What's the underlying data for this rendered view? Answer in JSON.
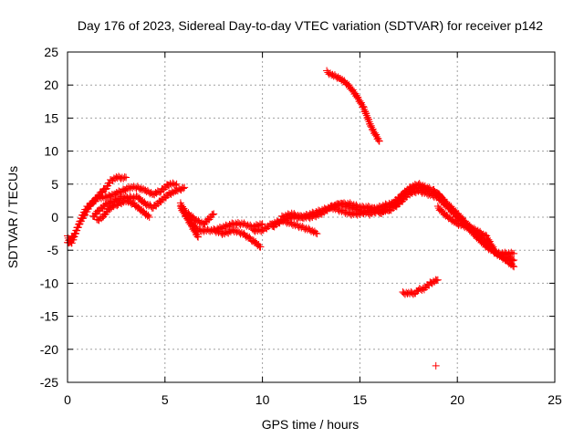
{
  "chart_data": {
    "type": "scatter",
    "title": "Day 176 of 2023, Sidereal Day-to-day VTEC variation (SDTVAR) for receiver p142",
    "xlabel": "GPS time / hours",
    "ylabel": "SDTVAR / TECUs",
    "xlim": [
      0,
      25
    ],
    "ylim": [
      -25,
      25
    ],
    "xticks": [
      0,
      5,
      10,
      15,
      20,
      25
    ],
    "yticks": [
      -25,
      -20,
      -15,
      -10,
      -5,
      0,
      5,
      10,
      15,
      20,
      25
    ],
    "grid": true,
    "marker": "+",
    "color": "#ff0000",
    "series": [
      {
        "name": "arc-early-rise",
        "points": [
          [
            0,
            -3
          ],
          [
            0.2,
            -4
          ],
          [
            0.4,
            -2.5
          ],
          [
            0.6,
            -1
          ],
          [
            0.8,
            0.5
          ],
          [
            1,
            1.5
          ],
          [
            1.2,
            2
          ],
          [
            1.5,
            3
          ],
          [
            1.8,
            4
          ],
          [
            2,
            4.5
          ],
          [
            2.2,
            5.5
          ],
          [
            2.5,
            6
          ],
          [
            2.8,
            6
          ],
          [
            3,
            6
          ]
        ]
      },
      {
        "name": "arc-early-upper",
        "points": [
          [
            0,
            -4
          ],
          [
            0.3,
            -3
          ],
          [
            0.6,
            -1
          ],
          [
            0.9,
            0.5
          ],
          [
            1.2,
            2
          ],
          [
            1.6,
            3
          ],
          [
            2,
            3
          ],
          [
            2.4,
            3.5
          ],
          [
            2.8,
            4
          ],
          [
            3.2,
            4.5
          ],
          [
            3.6,
            4.5
          ],
          [
            4,
            4
          ],
          [
            4.4,
            3.5
          ],
          [
            4.8,
            4
          ],
          [
            5.2,
            5
          ],
          [
            5.6,
            5
          ]
        ]
      },
      {
        "name": "arc-early-mid",
        "points": [
          [
            1.5,
            -0.5
          ],
          [
            1.8,
            0
          ],
          [
            2.2,
            1.5
          ],
          [
            2.6,
            2
          ],
          [
            3,
            2.5
          ],
          [
            3.4,
            2
          ],
          [
            3.8,
            1
          ],
          [
            4.2,
            0
          ]
        ]
      },
      {
        "name": "arc-low-1",
        "points": [
          [
            1.3,
            0
          ],
          [
            1.6,
            1
          ],
          [
            2,
            2
          ],
          [
            2.4,
            2.5
          ],
          [
            2.8,
            3
          ],
          [
            3.2,
            3
          ],
          [
            3.6,
            3
          ],
          [
            4,
            2
          ],
          [
            4.4,
            1.5
          ],
          [
            4.8,
            2.5
          ],
          [
            5.2,
            3.5
          ],
          [
            5.6,
            4
          ],
          [
            6,
            4.5
          ]
        ]
      },
      {
        "name": "arc-dip",
        "points": [
          [
            5.8,
            2
          ],
          [
            6.1,
            0.5
          ],
          [
            6.4,
            -1
          ],
          [
            6.7,
            -2
          ],
          [
            7,
            -2
          ],
          [
            7.5,
            -2
          ],
          [
            8,
            -1.5
          ],
          [
            8.5,
            -1
          ],
          [
            9,
            -1
          ],
          [
            9.5,
            -1.5
          ],
          [
            10,
            -1
          ]
        ]
      },
      {
        "name": "arc-dip-steep",
        "points": [
          [
            5.8,
            1.5
          ],
          [
            6.1,
            0
          ],
          [
            6.4,
            -1.5
          ],
          [
            6.7,
            -3
          ]
        ]
      },
      {
        "name": "arc-dip-2",
        "points": [
          [
            6.2,
            0.5
          ],
          [
            6.6,
            -0.5
          ],
          [
            7,
            -1
          ],
          [
            7.5,
            0.5
          ]
        ]
      },
      {
        "name": "arc-dip-3",
        "points": [
          [
            7.5,
            -2
          ],
          [
            8,
            -2.5
          ],
          [
            8.5,
            -2
          ],
          [
            9,
            -2.5
          ],
          [
            9.5,
            -3.5
          ],
          [
            9.9,
            -4.5
          ]
        ]
      },
      {
        "name": "arc-mid",
        "points": [
          [
            9.5,
            -2
          ],
          [
            10,
            -2
          ],
          [
            10.5,
            -1
          ],
          [
            11,
            -0.5
          ],
          [
            11.5,
            0
          ],
          [
            12,
            0
          ],
          [
            12.5,
            0
          ],
          [
            13,
            0.5
          ],
          [
            13.5,
            1.5
          ],
          [
            14,
            2
          ],
          [
            14.5,
            2
          ],
          [
            15,
            1.5
          ],
          [
            15.5,
            1.5
          ],
          [
            16,
            1
          ],
          [
            16.5,
            1
          ]
        ]
      },
      {
        "name": "arc-mid-2",
        "points": [
          [
            10.5,
            -1.5
          ],
          [
            11,
            -0.5
          ],
          [
            11.5,
            -1
          ],
          [
            12,
            -1.5
          ],
          [
            12.5,
            -2
          ],
          [
            12.8,
            -2.5
          ]
        ]
      },
      {
        "name": "arc-mid-3",
        "points": [
          [
            11,
            0
          ],
          [
            11.5,
            0.5
          ],
          [
            12,
            0
          ],
          [
            12.5,
            0.5
          ],
          [
            13,
            1
          ],
          [
            13.5,
            1.5
          ],
          [
            14,
            2
          ],
          [
            14.5,
            1.5
          ],
          [
            15,
            1
          ],
          [
            15.5,
            0.5
          ],
          [
            16,
            1
          ]
        ]
      },
      {
        "name": "arc-mid-4",
        "points": [
          [
            13.5,
            1.5
          ],
          [
            14,
            1
          ],
          [
            14.5,
            0.5
          ],
          [
            15,
            0.5
          ],
          [
            15.5,
            1
          ],
          [
            16,
            1.5
          ],
          [
            16.5,
            2
          ],
          [
            17,
            2
          ]
        ]
      },
      {
        "name": "arc-late-hump",
        "points": [
          [
            16,
            0.5
          ],
          [
            16.5,
            1.5
          ],
          [
            17,
            3
          ],
          [
            17.5,
            4
          ],
          [
            18,
            4.5
          ],
          [
            18.5,
            4
          ],
          [
            19,
            3.5
          ],
          [
            19.5,
            2
          ],
          [
            20,
            0.5
          ],
          [
            20.5,
            -1
          ],
          [
            21,
            -2.5
          ],
          [
            21.5,
            -4
          ],
          [
            22,
            -5.5
          ],
          [
            22.5,
            -6.5
          ],
          [
            22.9,
            -7.5
          ]
        ]
      },
      {
        "name": "arc-late-hump-2",
        "points": [
          [
            16.5,
            1
          ],
          [
            17,
            2
          ],
          [
            17.5,
            3.5
          ],
          [
            18,
            4
          ],
          [
            18.5,
            3.5
          ],
          [
            19,
            3
          ],
          [
            19.5,
            1.5
          ],
          [
            20,
            0
          ],
          [
            20.5,
            -1.5
          ],
          [
            21,
            -3
          ],
          [
            21.5,
            -4.5
          ],
          [
            22,
            -5.5
          ],
          [
            22.5,
            -6
          ],
          [
            22.9,
            -6.5
          ]
        ]
      },
      {
        "name": "arc-late-hump-3",
        "points": [
          [
            16.8,
            2
          ],
          [
            17.2,
            3.5
          ],
          [
            17.6,
            4.5
          ],
          [
            18,
            5
          ],
          [
            18.4,
            4.5
          ],
          [
            18.8,
            4
          ],
          [
            19.2,
            3
          ]
        ]
      },
      {
        "name": "arc-late-tail",
        "points": [
          [
            19,
            1.5
          ],
          [
            19.5,
            0
          ],
          [
            20,
            -1
          ],
          [
            20.5,
            -1.5
          ],
          [
            21,
            -2
          ],
          [
            21.5,
            -3
          ],
          [
            22,
            -5.5
          ],
          [
            22.5,
            -5.5
          ],
          [
            22.9,
            -5.5
          ]
        ]
      },
      {
        "name": "arc-high",
        "points": [
          [
            13.3,
            22
          ],
          [
            13.6,
            21.5
          ],
          [
            14,
            21
          ],
          [
            14.4,
            20
          ],
          [
            14.8,
            18.5
          ],
          [
            15.2,
            16.5
          ],
          [
            15.6,
            13.5
          ],
          [
            16,
            11.5
          ]
        ]
      },
      {
        "name": "arc-low-segment",
        "points": [
          [
            17.2,
            -11.5
          ],
          [
            17.5,
            -11.5
          ],
          [
            17.8,
            -11.5
          ],
          [
            18,
            -11
          ],
          [
            18.3,
            -10.8
          ],
          [
            18.6,
            -10
          ],
          [
            19,
            -9.5
          ]
        ]
      },
      {
        "name": "outlier",
        "points": [
          [
            18.9,
            -22.5
          ]
        ]
      }
    ]
  }
}
